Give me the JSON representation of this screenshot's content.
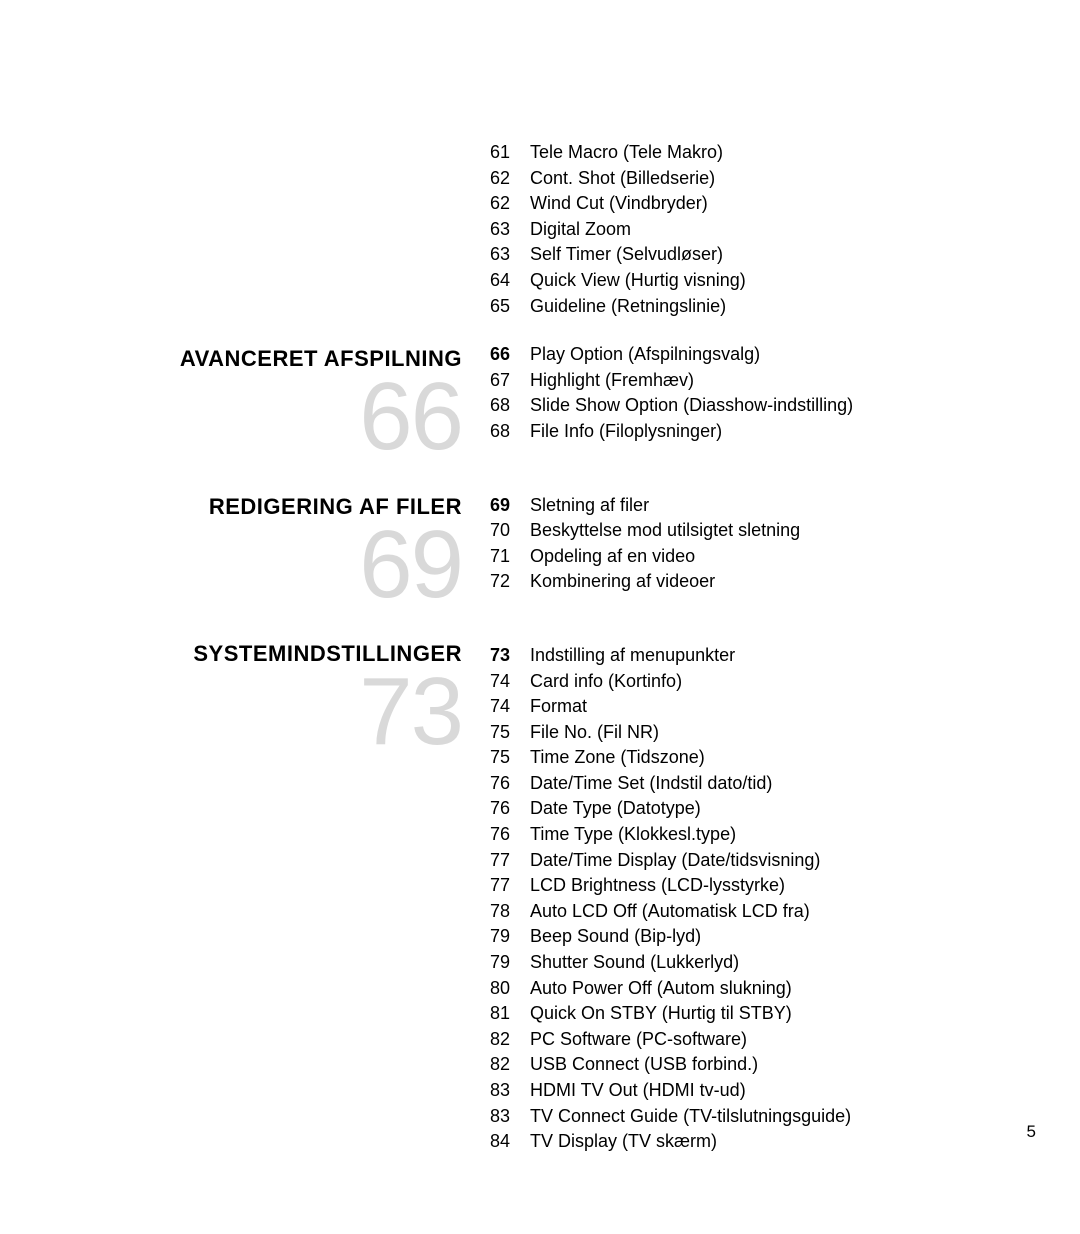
{
  "page_number": "5",
  "colors": {
    "big_num": "#d9d9d9",
    "text": "#000000",
    "bg": "#ffffff"
  },
  "sections": [
    {
      "title": "AVANCERET AFSPILNING",
      "big": "66"
    },
    {
      "title": "REDIGERING AF FILER",
      "big": "69"
    },
    {
      "title": "SYSTEMINDSTILLINGER",
      "big": "73"
    }
  ],
  "group0": [
    {
      "n": "61",
      "t": "Tele Macro (Tele Makro)"
    },
    {
      "n": "62",
      "t": "Cont. Shot (Billedserie)"
    },
    {
      "n": "62",
      "t": "Wind Cut (Vindbryder)"
    },
    {
      "n": "63",
      "t": "Digital Zoom"
    },
    {
      "n": "63",
      "t": "Self Timer (Selvudløser)"
    },
    {
      "n": "64",
      "t": "Quick View (Hurtig visning)"
    },
    {
      "n": "65",
      "t": "Guideline (Retningslinie)"
    }
  ],
  "group1": [
    {
      "n": "66",
      "t": "Play Option (Afspilningsvalg)",
      "bold": true
    },
    {
      "n": "67",
      "t": "Highlight (Fremhæv)"
    },
    {
      "n": "68",
      "t": "Slide Show Option (Diasshow-indstilling)"
    },
    {
      "n": "68",
      "t": "File Info (Filoplysninger)"
    }
  ],
  "group2": [
    {
      "n": "69",
      "t": "Sletning af filer",
      "bold": true
    },
    {
      "n": "70",
      "t": "Beskyttelse mod utilsigtet sletning"
    },
    {
      "n": "71",
      "t": "Opdeling af en video"
    },
    {
      "n": "72",
      "t": "Kombinering af videoer"
    }
  ],
  "group3": [
    {
      "n": "73",
      "t": "Indstilling af menupunkter",
      "bold": true
    },
    {
      "n": "74",
      "t": "Card info (Kortinfo)"
    },
    {
      "n": "74",
      "t": "Format"
    },
    {
      "n": "75",
      "t": "File No. (Fil NR)"
    },
    {
      "n": "75",
      "t": "Time Zone (Tidszone)"
    },
    {
      "n": "76",
      "t": "Date/Time Set (Indstil dato/tid)"
    },
    {
      "n": "76",
      "t": "Date Type (Datotype)"
    },
    {
      "n": "76",
      "t": "Time Type (Klokkesl.type)"
    },
    {
      "n": "77",
      "t": "Date/Time Display (Date/tidsvisning)"
    },
    {
      "n": "77",
      "t": "LCD Brightness (LCD-lysstyrke)"
    },
    {
      "n": "78",
      "t": "Auto LCD Off (Automatisk LCD fra)"
    },
    {
      "n": "79",
      "t": "Beep Sound (Bip-lyd)"
    },
    {
      "n": "79",
      "t": "Shutter Sound (Lukkerlyd)"
    },
    {
      "n": "80",
      "t": "Auto Power Off (Autom slukning)"
    },
    {
      "n": "81",
      "t": "Quick On STBY (Hurtig til STBY)"
    },
    {
      "n": "82",
      "t": "PC Software (PC-software)"
    },
    {
      "n": "82",
      "t": "USB Connect (USB forbind.)"
    },
    {
      "n": "83",
      "t": "HDMI TV Out (HDMI tv-ud)"
    },
    {
      "n": "83",
      "t": "TV Connect Guide (TV-tilslutningsguide)"
    },
    {
      "n": "84",
      "t": "TV Display (TV skærm)"
    }
  ]
}
